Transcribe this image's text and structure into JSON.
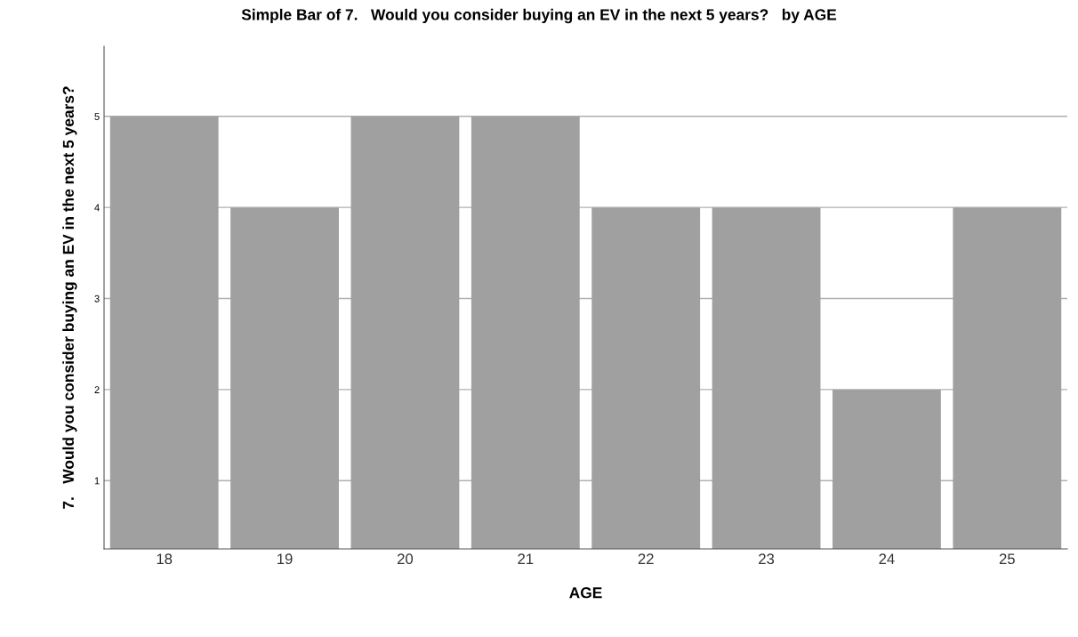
{
  "chart_data": {
    "type": "bar",
    "title": "Simple Bar of 7.   Would you consider buying an EV in the next 5 years?   by AGE",
    "xlabel": "AGE",
    "ylabel": "7.   Would you consider buying an EV in the next 5 years?",
    "categories": [
      "18",
      "19",
      "20",
      "21",
      "22",
      "23",
      "24",
      "25"
    ],
    "values": [
      5,
      4,
      5,
      5,
      4,
      4,
      2,
      4
    ],
    "color": "#a0a0a0",
    "ylim": [
      0.25,
      5.77
    ],
    "yticks": [
      1,
      2,
      3,
      4,
      5
    ],
    "grid": "y"
  }
}
